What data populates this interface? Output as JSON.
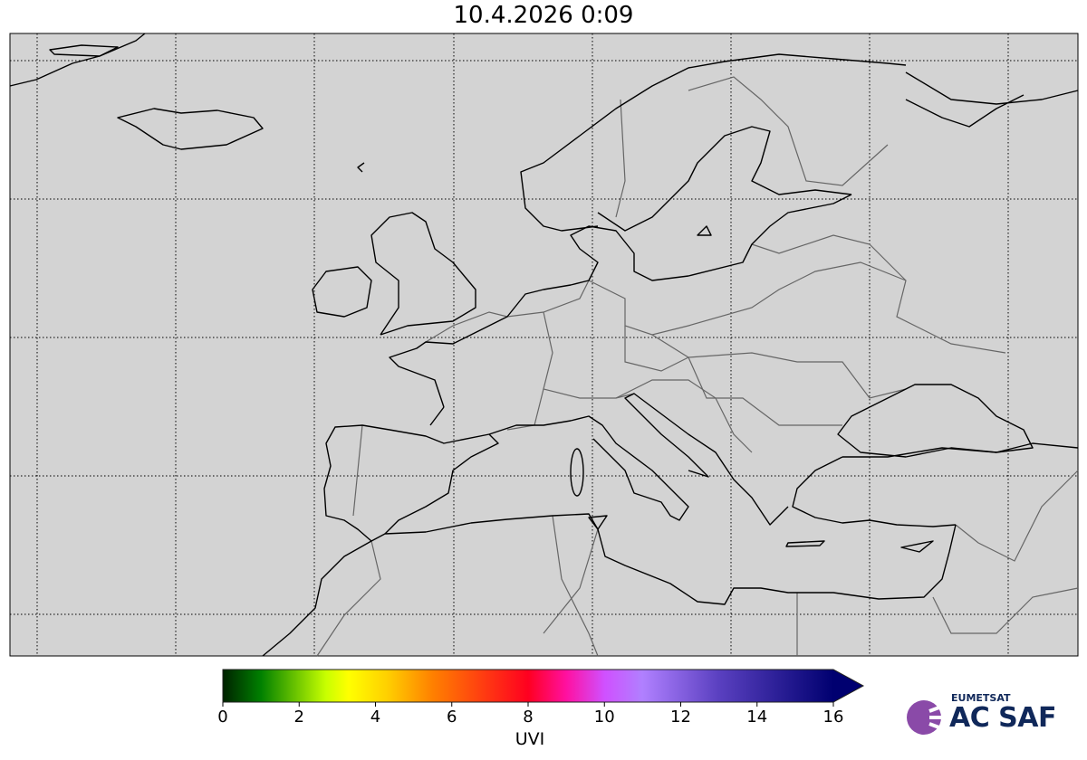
{
  "title": "10.4.2026 0:09",
  "map": {
    "projection": "cylindrical",
    "background_color": "#d3d3d3",
    "coastline_color": "#000000",
    "border_color": "#666666",
    "graticule": "dotted"
  },
  "colorbar": {
    "label": "UVI",
    "min": 0,
    "max": 16,
    "extend": "max",
    "ticks": [
      "0",
      "2",
      "4",
      "6",
      "8",
      "10",
      "12",
      "14",
      "16"
    ],
    "colors": [
      {
        "value": 0,
        "color": "#002200"
      },
      {
        "value": 1,
        "color": "#008000"
      },
      {
        "value": 2.7,
        "color": "#c8ff00"
      },
      {
        "value": 3.3,
        "color": "#ffff00"
      },
      {
        "value": 4.3,
        "color": "#ffd000"
      },
      {
        "value": 5.5,
        "color": "#ff8000"
      },
      {
        "value": 8,
        "color": "#ff0020"
      },
      {
        "value": 9,
        "color": "#ff10a0"
      },
      {
        "value": 10,
        "color": "#d050ff"
      },
      {
        "value": 11,
        "color": "#b080ff"
      },
      {
        "value": 13,
        "color": "#5a40c0"
      },
      {
        "value": 16,
        "color": "#000070"
      }
    ]
  },
  "logo": {
    "org": "EUMETSAT",
    "brand": "AC SAF",
    "color": "#10285a",
    "mark_color": "#8a4aa8"
  }
}
